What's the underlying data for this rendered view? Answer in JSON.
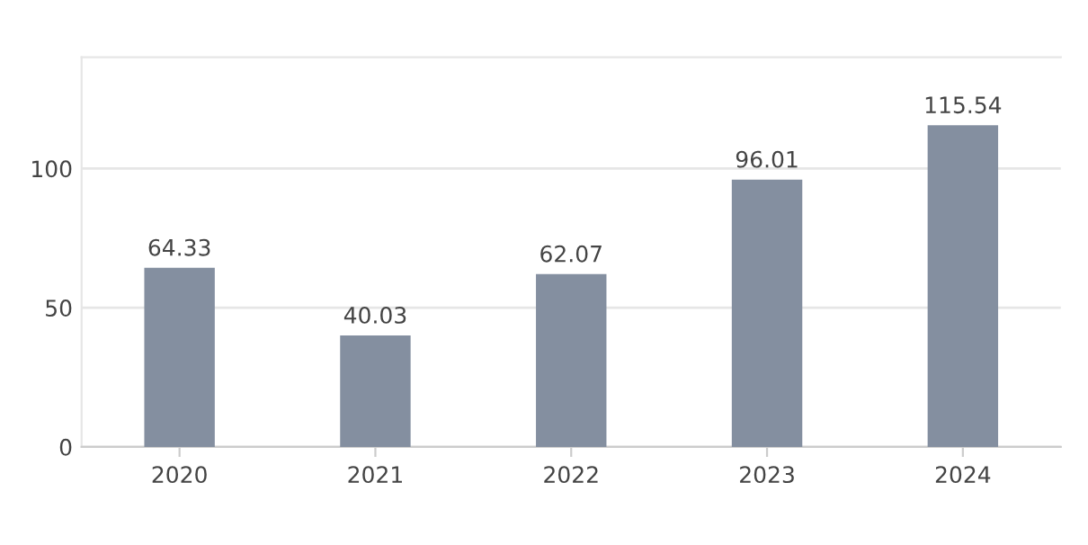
{
  "chart_data": {
    "type": "bar",
    "categories": [
      "2020",
      "2021",
      "2022",
      "2023",
      "2024"
    ],
    "values": [
      64.33,
      40.03,
      62.07,
      96.01,
      115.54
    ],
    "color": "#848fa0",
    "ylim": [
      0,
      140
    ],
    "yticks": [
      0,
      50,
      100
    ],
    "grid": "y",
    "data_labels": true
  }
}
